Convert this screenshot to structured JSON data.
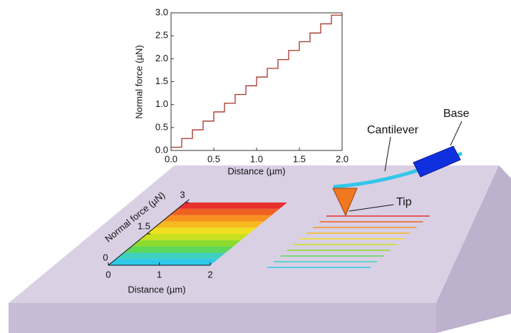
{
  "chart_data": {
    "type": "line",
    "step": "post",
    "color": "#a8322a",
    "x_label": "Distance (µm)",
    "y_label": "Normal force (µN)",
    "x": [
      0,
      0.125,
      0.25,
      0.375,
      0.5,
      0.625,
      0.75,
      0.875,
      1,
      1.125,
      1.25,
      1.375,
      1.5,
      1.625,
      1.75,
      1.875
    ],
    "values": [
      0.07,
      0.26,
      0.45,
      0.64,
      0.84,
      1.03,
      1.22,
      1.41,
      1.6,
      1.79,
      1.98,
      2.18,
      2.37,
      2.56,
      2.76,
      2.95
    ],
    "xlim": [
      0,
      2
    ],
    "ylim": [
      0,
      3
    ],
    "xticks": [
      {
        "value": 0,
        "label": "0.0"
      },
      {
        "value": 0.5,
        "label": "0.5"
      },
      {
        "value": 1,
        "label": "1.0"
      },
      {
        "value": 1.5,
        "label": "1.5"
      },
      {
        "value": 2,
        "label": "2.0"
      }
    ],
    "yticks": [
      {
        "value": 0,
        "label": "0.0"
      },
      {
        "value": 0.5,
        "label": "0.5"
      },
      {
        "value": 1,
        "label": "1.0"
      },
      {
        "value": 1.5,
        "label": "1.5"
      },
      {
        "value": 2,
        "label": "2.0"
      },
      {
        "value": 2.5,
        "label": "2.5"
      },
      {
        "value": 3,
        "label": "3.0"
      }
    ]
  },
  "diagram": {
    "base_label": "Base",
    "cantilever_label": "Cantilever",
    "tip_label": "Tip",
    "inset": {
      "x_label": "Distance (µm)",
      "y_label": "Normal force (µN)",
      "xticks": [
        0,
        1,
        2
      ],
      "xlim": [
        0,
        2
      ],
      "yticks": [
        0,
        1.5,
        3
      ],
      "ylim": [
        0,
        3
      ]
    },
    "stripe_colors": [
      "#2ec8e8",
      "#3fd0c0",
      "#5cd85a",
      "#8cdc2e",
      "#c8e020",
      "#f0e020",
      "#f8b820",
      "#f89020",
      "#f06020",
      "#e83030"
    ]
  }
}
